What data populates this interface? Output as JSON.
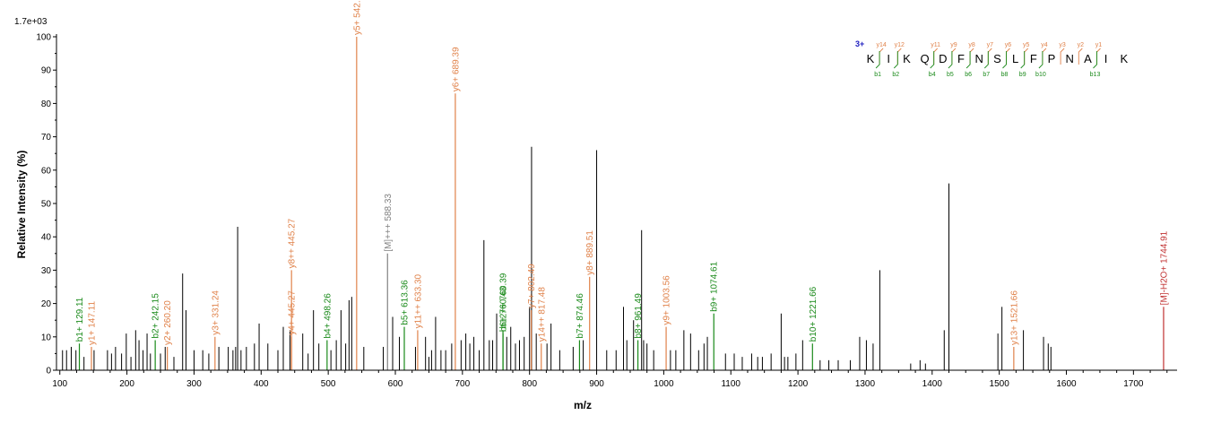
{
  "chart_data": {
    "type": "bar",
    "title": "",
    "xlabel": "m/z",
    "ylabel": "Relative   Intensity (%)",
    "max_intensity_label": "1.7e+03",
    "xlim": [
      95,
      1765
    ],
    "ylim": [
      0,
      100
    ],
    "x_ticks": [
      100,
      200,
      300,
      400,
      500,
      600,
      700,
      800,
      900,
      1000,
      1100,
      1200,
      1300,
      1400,
      1500,
      1600,
      1700
    ],
    "y_ticks": [
      0,
      10,
      20,
      30,
      40,
      50,
      60,
      70,
      80,
      90,
      100
    ],
    "colors": {
      "b_ion": "#1a8a1a",
      "y_ion": "#e0824a",
      "precursor": "#808080",
      "water_loss": "#c03030",
      "unlabeled": "#000000",
      "charge": "#2020c0"
    },
    "annotated_peaks": [
      {
        "mz": 129.11,
        "intensity": 8,
        "label": "b1+ 129.11",
        "kind": "b_ion"
      },
      {
        "mz": 147.11,
        "intensity": 7,
        "label": "y1+ 147.11",
        "kind": "y_ion"
      },
      {
        "mz": 242.15,
        "intensity": 9,
        "label": "b2+ 242.15",
        "kind": "b_ion"
      },
      {
        "mz": 260.2,
        "intensity": 7,
        "label": "y2+ 260.20",
        "kind": "y_ion"
      },
      {
        "mz": 331.24,
        "intensity": 10,
        "label": "y3+ 331.24",
        "kind": "y_ion"
      },
      {
        "mz": 445.27,
        "intensity": 10,
        "label": "y4+ 445.27",
        "kind": "y_ion"
      },
      {
        "mz": 445.27,
        "intensity": 30,
        "label": "y8++ 445.27",
        "kind": "y_ion"
      },
      {
        "mz": 498.26,
        "intensity": 9,
        "label": "b4+ 498.26",
        "kind": "b_ion"
      },
      {
        "mz": 542.33,
        "intensity": 100,
        "label": "y5+ 542.33",
        "kind": "y_ion"
      },
      {
        "mz": 588.33,
        "intensity": 35,
        "label": "[M]+++ 588.33",
        "kind": "precursor"
      },
      {
        "mz": 613.36,
        "intensity": 13,
        "label": "b5+ 613.36",
        "kind": "b_ion"
      },
      {
        "mz": 633.3,
        "intensity": 12,
        "label": "y11++ 633.30",
        "kind": "y_ion"
      },
      {
        "mz": 689.39,
        "intensity": 83,
        "label": "y6+ 689.39",
        "kind": "y_ion"
      },
      {
        "mz": 760.39,
        "intensity": 12,
        "label": "b12++ 760.39",
        "kind": "b_ion"
      },
      {
        "mz": 760.43,
        "intensity": 11,
        "label": "b6+ 760.43",
        "kind": "b_ion"
      },
      {
        "mz": 802.49,
        "intensity": 18,
        "label": "y7+ 802.49",
        "kind": "y_ion"
      },
      {
        "mz": 817.48,
        "intensity": 8,
        "label": "y14++ 817.48",
        "kind": "y_ion"
      },
      {
        "mz": 874.46,
        "intensity": 9,
        "label": "b7+ 874.46",
        "kind": "b_ion"
      },
      {
        "mz": 889.51,
        "intensity": 28,
        "label": "y8+ 889.51",
        "kind": "y_ion"
      },
      {
        "mz": 961.49,
        "intensity": 9,
        "label": "b8+ 961.49",
        "kind": "b_ion"
      },
      {
        "mz": 1003.56,
        "intensity": 13,
        "label": "y9+ 1003.56",
        "kind": "y_ion"
      },
      {
        "mz": 1074.61,
        "intensity": 17,
        "label": "b9+ 1074.61",
        "kind": "b_ion"
      },
      {
        "mz": 1221.66,
        "intensity": 8,
        "label": "b10+ 1221.66",
        "kind": "b_ion"
      },
      {
        "mz": 1521.66,
        "intensity": 7,
        "label": "y13+ 1521.66",
        "kind": "y_ion"
      },
      {
        "mz": 1744.91,
        "intensity": 19,
        "label": "[M]-H2O+ 1744.91",
        "kind": "water_loss"
      }
    ],
    "unlabeled_peaks": [
      [
        104,
        6
      ],
      [
        110,
        6
      ],
      [
        117,
        7
      ],
      [
        124,
        6
      ],
      [
        136,
        4
      ],
      [
        151,
        6
      ],
      [
        171,
        6
      ],
      [
        177,
        5
      ],
      [
        183,
        7
      ],
      [
        192,
        5
      ],
      [
        199,
        11
      ],
      [
        206,
        4
      ],
      [
        213,
        12
      ],
      [
        218,
        9
      ],
      [
        224,
        6
      ],
      [
        230,
        11
      ],
      [
        235,
        5
      ],
      [
        250,
        5
      ],
      [
        257,
        7
      ],
      [
        270,
        4
      ],
      [
        283,
        29
      ],
      [
        288,
        18
      ],
      [
        300,
        6
      ],
      [
        313,
        6
      ],
      [
        322,
        5
      ],
      [
        337,
        7
      ],
      [
        351,
        7
      ],
      [
        358,
        6
      ],
      [
        362,
        7
      ],
      [
        365,
        43
      ],
      [
        370,
        6
      ],
      [
        378,
        7
      ],
      [
        390,
        8
      ],
      [
        397,
        14
      ],
      [
        410,
        8
      ],
      [
        425,
        6
      ],
      [
        433,
        13
      ],
      [
        443,
        12
      ],
      [
        462,
        11
      ],
      [
        470,
        5
      ],
      [
        478,
        18
      ],
      [
        486,
        8
      ],
      [
        504,
        6
      ],
      [
        512,
        9
      ],
      [
        519,
        18
      ],
      [
        526,
        8
      ],
      [
        531,
        21
      ],
      [
        535,
        22
      ],
      [
        553,
        7
      ],
      [
        582,
        7
      ],
      [
        596,
        16
      ],
      [
        606,
        10
      ],
      [
        630,
        7
      ],
      [
        645,
        10
      ],
      [
        650,
        4
      ],
      [
        654,
        6
      ],
      [
        660,
        16
      ],
      [
        668,
        6
      ],
      [
        675,
        6
      ],
      [
        684,
        8
      ],
      [
        698,
        9
      ],
      [
        705,
        11
      ],
      [
        711,
        8
      ],
      [
        717,
        10
      ],
      [
        725,
        6
      ],
      [
        732,
        39
      ],
      [
        740,
        9
      ],
      [
        745,
        9
      ],
      [
        751,
        17
      ],
      [
        766,
        10
      ],
      [
        772,
        13
      ],
      [
        779,
        8
      ],
      [
        785,
        9
      ],
      [
        792,
        10
      ],
      [
        800,
        19
      ],
      [
        803,
        67
      ],
      [
        810,
        11
      ],
      [
        826,
        8
      ],
      [
        832,
        14
      ],
      [
        845,
        6
      ],
      [
        865,
        7
      ],
      [
        880,
        9
      ],
      [
        900,
        66
      ],
      [
        915,
        6
      ],
      [
        929,
        6
      ],
      [
        940,
        19
      ],
      [
        945,
        9
      ],
      [
        955,
        15
      ],
      [
        967,
        42
      ],
      [
        970,
        9
      ],
      [
        975,
        8
      ],
      [
        985,
        6
      ],
      [
        1010,
        6
      ],
      [
        1018,
        6
      ],
      [
        1030,
        12
      ],
      [
        1040,
        11
      ],
      [
        1052,
        6
      ],
      [
        1060,
        8
      ],
      [
        1065,
        10
      ],
      [
        1092,
        5
      ],
      [
        1105,
        5
      ],
      [
        1117,
        4
      ],
      [
        1131,
        5
      ],
      [
        1140,
        4
      ],
      [
        1147,
        4
      ],
      [
        1160,
        5
      ],
      [
        1175,
        17
      ],
      [
        1180,
        4
      ],
      [
        1185,
        4
      ],
      [
        1197,
        5
      ],
      [
        1207,
        9
      ],
      [
        1233,
        3
      ],
      [
        1246,
        3
      ],
      [
        1260,
        3
      ],
      [
        1278,
        3
      ],
      [
        1292,
        10
      ],
      [
        1302,
        9
      ],
      [
        1312,
        8
      ],
      [
        1322,
        30
      ],
      [
        1368,
        2
      ],
      [
        1382,
        3
      ],
      [
        1390,
        2
      ],
      [
        1418,
        12
      ],
      [
        1425,
        56
      ],
      [
        1498,
        11
      ],
      [
        1504,
        19
      ],
      [
        1536,
        12
      ],
      [
        1566,
        10
      ],
      [
        1573,
        8
      ],
      [
        1577,
        7
      ]
    ],
    "sequence": {
      "charge": "3+",
      "residues": [
        "K",
        "I",
        "K",
        "Q",
        "D",
        "F",
        "N",
        "S",
        "L",
        "F",
        "P",
        "N",
        "A",
        "I",
        "K"
      ],
      "y_ion_labels": [
        "y14",
        "y12",
        "y11",
        "y9",
        "y8",
        "y7",
        "y6",
        "y5",
        "y4",
        "y3",
        "y2",
        "y1"
      ],
      "b_ion_labels": [
        "b1",
        "b2",
        "b4",
        "b5",
        "b6",
        "b7",
        "b8",
        "b9",
        "b10",
        "b13"
      ]
    }
  }
}
